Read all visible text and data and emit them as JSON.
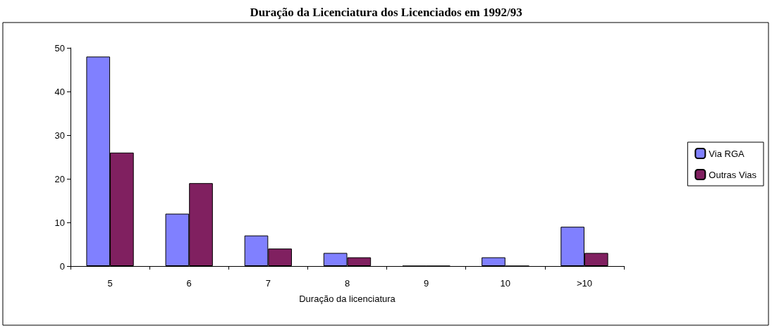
{
  "chart_data": {
    "type": "bar",
    "title": "Duração da Licenciatura dos Licenciados em 1992/93",
    "xlabel": "Duração da licenciatura",
    "categories": [
      "5",
      "6",
      "7",
      "8",
      "9",
      "10",
      ">10"
    ],
    "series": [
      {
        "name": "Via RGA",
        "color": "#8080ff",
        "values": [
          48,
          12,
          7,
          3,
          0,
          2,
          9
        ]
      },
      {
        "name": "Outras Vias",
        "color": "#802060",
        "values": [
          26,
          19,
          4,
          2,
          0,
          0,
          3
        ]
      }
    ],
    "ylim": [
      0,
      50
    ],
    "yticks": [
      0,
      10,
      20,
      30,
      40,
      50
    ],
    "grid": false,
    "legend": "right"
  }
}
